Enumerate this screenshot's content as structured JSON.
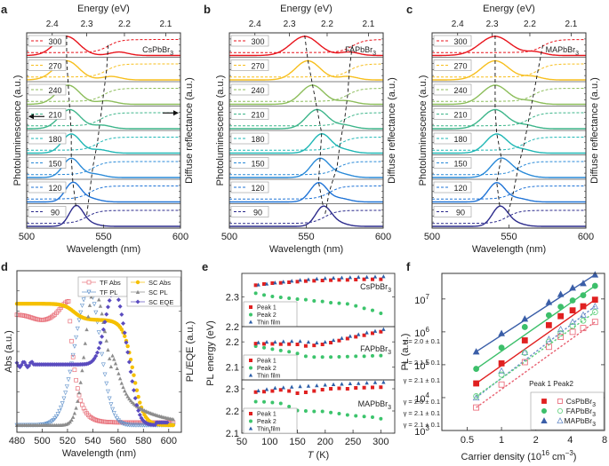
{
  "chart_data": [
    {
      "id": "a",
      "panel_label": "a",
      "type": "line",
      "title": "",
      "material": "CsPbBr3",
      "material_label": "CsPbBr",
      "material_sub": "3",
      "xlabel": "Wavelength (nm)",
      "x_ticks": [
        "500",
        "550",
        "600"
      ],
      "xlim": [
        500,
        600
      ],
      "top_axis_label": "Energy (eV)",
      "top_ticks": [
        "2.4",
        "2.3",
        "2.2",
        "2.1"
      ],
      "ylabel_left": "Photoluminescence (a.u.)",
      "ylabel_right": "Diffuse reflectance (a.u.)",
      "temperatures": [
        "300",
        "270",
        "240",
        "210",
        "180",
        "150",
        "120",
        "90"
      ],
      "pl_peak_nm": [
        526,
        526,
        527,
        528,
        529,
        529,
        530,
        532
      ],
      "pl_width_nm": [
        8,
        8,
        7.5,
        7,
        6,
        5.5,
        5,
        4.5
      ],
      "pl_shoulder_nm": [
        560,
        555,
        552,
        549,
        547,
        544,
        541,
        539
      ],
      "refl_edge_nm": [
        553,
        552,
        550,
        548,
        546,
        543,
        541,
        539
      ],
      "arrows": true
    },
    {
      "id": "b",
      "panel_label": "b",
      "type": "line",
      "material": "FAPbBr3",
      "material_label": "FAPbBr",
      "material_sub": "3",
      "xlabel": "Wavelength (nm)",
      "x_ticks": [
        "500",
        "550",
        "600"
      ],
      "xlim": [
        500,
        600
      ],
      "top_axis_label": "Energy (eV)",
      "top_ticks": [
        "2.4",
        "2.3",
        "2.2",
        "2.1"
      ],
      "ylabel_left": "Photoluminescence (a.u.)",
      "ylabel_right": "Diffuse reflectance (a.u.)",
      "temperatures": [
        "300",
        "270",
        "240",
        "210",
        "180",
        "150",
        "120",
        "90"
      ],
      "pl_peak_nm": [
        549,
        551,
        554,
        557,
        560,
        559,
        558,
        561
      ],
      "pl_width_nm": [
        9,
        8,
        7.5,
        7,
        6,
        6,
        5.5,
        5
      ],
      "pl_shoulder_nm": [
        578,
        577,
        576,
        575,
        574,
        573,
        572,
        570
      ],
      "refl_edge_nm": [
        580,
        578,
        577,
        575,
        572,
        570,
        565,
        562
      ]
    },
    {
      "id": "c",
      "panel_label": "c",
      "type": "line",
      "material": "MAPbBr3",
      "material_label": "MAPbBr",
      "material_sub": "3",
      "xlabel": "Wavelength (nm)",
      "x_ticks": [
        "500",
        "550",
        "600"
      ],
      "xlim": [
        500,
        600
      ],
      "top_axis_label": "Energy (eV)",
      "top_ticks": [
        "2.4",
        "2.3",
        "2.2",
        "2.1"
      ],
      "ylabel_left": "Photoluminescence (a.u.)",
      "ylabel_right": "Diffuse reflectance (a.u.)",
      "temperatures": [
        "300",
        "270",
        "240",
        "210",
        "180",
        "150",
        "120",
        "90"
      ],
      "pl_peak_nm": [
        541,
        541,
        541,
        541,
        542,
        545,
        542,
        544
      ],
      "pl_width_nm": [
        10,
        9,
        8.5,
        8,
        7,
        6.5,
        5.5,
        5
      ],
      "pl_shoulder_nm": [
        567,
        565,
        563,
        561,
        559,
        558,
        556,
        553
      ],
      "refl_edge_nm": [
        572,
        569,
        566,
        563,
        560,
        556,
        553,
        549
      ]
    },
    {
      "id": "d",
      "panel_label": "d",
      "type": "scatter",
      "xlabel": "Wavelength (nm)",
      "ylabel_left": "Abs (a.u.)",
      "ylabel_right": "PL/EQE (a.u.)",
      "xlim": [
        480,
        610
      ],
      "x_ticks": [
        "480",
        "500",
        "520",
        "540",
        "560",
        "580",
        "600"
      ],
      "legend": [
        "TF Abs",
        "TF PL",
        "SC Abs",
        "SC PL",
        "SC EQE"
      ],
      "series": [
        {
          "name": "TF Abs",
          "color": "#e8707a",
          "marker": "square-open",
          "peak_nm": 521,
          "peak": 0.92,
          "plateau": 0.82
        },
        {
          "name": "TF PL",
          "color": "#5b8ec9",
          "marker": "triangle-down-open",
          "peak_nm": 537,
          "width_nm": 11
        },
        {
          "name": "SC Abs",
          "color": "#f5c000",
          "marker": "circle",
          "plateau": 0.88,
          "edge_nm": 572
        },
        {
          "name": "SC PL",
          "color": "#8c8c8c",
          "marker": "triangle",
          "peak_nm": 541,
          "width_nm": 10
        },
        {
          "name": "SC EQE",
          "color": "#5a4bbf",
          "marker": "diamond",
          "peak_nm": 558,
          "baseline": 0.45
        }
      ]
    },
    {
      "id": "e",
      "panel_label": "e",
      "type": "scatter",
      "xlabel": "T (K)",
      "xlabel_italic": "T",
      "xlabel_unit": " (K)",
      "ylabel": "PL energy (eV)",
      "xlim": [
        50,
        325
      ],
      "x_ticks": [
        "50",
        "100",
        "150",
        "200",
        "250",
        "300"
      ],
      "legend": [
        "Peak 1",
        "Peak 2",
        "Thin film"
      ],
      "subplots": [
        {
          "material": "CsPbBr3",
          "material_label": "CsPbBr",
          "material_sub": "3",
          "ylim": [
            2.2,
            2.38
          ],
          "y_ticks": [
            "2.3",
            "2.2"
          ],
          "T": [
            75,
            90,
            105,
            120,
            135,
            150,
            165,
            180,
            195,
            210,
            225,
            240,
            255,
            270,
            285,
            300
          ],
          "peak1": [
            2.34,
            2.344,
            2.347,
            2.348,
            2.35,
            2.352,
            2.354,
            2.355,
            2.356,
            2.357,
            2.358,
            2.358,
            2.359,
            2.36,
            2.36,
            2.36
          ],
          "peak2": [
            2.313,
            2.307,
            2.302,
            2.299,
            2.296,
            2.293,
            2.291,
            2.287,
            2.285,
            2.281,
            2.279,
            2.277,
            2.27,
            2.262,
            2.255,
            2.245
          ],
          "thin_film": [
            2.342,
            2.345,
            2.349,
            2.352,
            2.355,
            2.358,
            2.36,
            2.362,
            2.364,
            2.365,
            2.366,
            2.367,
            2.368,
            2.368,
            2.369,
            2.37
          ]
        },
        {
          "material": "FAPbBr3",
          "material_label": "FAPbBr",
          "material_sub": "3",
          "ylim": [
            2.05,
            2.26
          ],
          "y_ticks": [
            "2.2",
            "2.1"
          ],
          "T": [
            75,
            90,
            105,
            120,
            135,
            150,
            165,
            180,
            195,
            210,
            225,
            240,
            255,
            270,
            285,
            300
          ],
          "peak1": [
            2.193,
            2.192,
            2.192,
            2.191,
            2.191,
            2.19,
            2.184,
            2.186,
            2.19,
            2.197,
            2.205,
            2.213,
            2.22,
            2.226,
            2.234,
            2.24
          ],
          "peak2": [
            2.183,
            2.177,
            2.171,
            2.166,
            2.161,
            2.154,
            2.143,
            2.14,
            2.14,
            2.14,
            2.141,
            2.142,
            2.143,
            2.143,
            2.145,
            2.146
          ],
          "thin_film": [
            2.198,
            2.2,
            2.2,
            2.202,
            2.203,
            2.203,
            2.2,
            2.197,
            2.2,
            2.207,
            2.215,
            2.223,
            2.23,
            2.237,
            2.243,
            2.25
          ]
        },
        {
          "material": "MAPbBr3",
          "material_label": "MAPbBr",
          "material_sub": "3",
          "ylim": [
            2.1,
            2.34
          ],
          "y_ticks": [
            "2.3",
            "2.2",
            "2.1"
          ],
          "T": [
            75,
            90,
            105,
            120,
            135,
            150,
            165,
            180,
            195,
            210,
            225,
            240,
            255,
            270,
            285,
            300
          ],
          "peak1": [
            2.285,
            2.287,
            2.29,
            2.295,
            2.29,
            2.28,
            2.284,
            2.29,
            2.296,
            2.3,
            2.302,
            2.3,
            2.304,
            2.305,
            2.306,
            2.307
          ],
          "peak2": [
            2.242,
            2.241,
            2.238,
            2.234,
            2.22,
            2.202,
            2.2,
            2.198,
            2.198,
            2.193,
            2.188,
            2.182,
            2.178,
            2.175,
            2.172,
            2.165
          ],
          "thin_film": [
            2.292,
            2.298,
            2.304,
            2.306,
            2.309,
            2.311,
            2.313,
            2.315,
            2.318,
            2.32,
            2.322,
            2.324,
            2.325,
            2.327,
            2.329,
            2.33
          ]
        }
      ]
    },
    {
      "id": "f",
      "panel_label": "f",
      "type": "scatter",
      "xscale": "log",
      "yscale": "log",
      "xlabel": "Carrier density (10",
      "xlabel_sup1": "16",
      "xlabel_mid": " cm",
      "xlabel_sup2": "−3",
      "xlabel_end": ")",
      "ylabel": "PL (a.u.)",
      "xlim": [
        0.3,
        8
      ],
      "ylim": [
        1000,
        60000000
      ],
      "x_ticks": [
        "0.5",
        "1",
        "2",
        "4",
        "8"
      ],
      "y_ticks": [
        "10^3",
        "10^4",
        "10^5",
        "10^6",
        "10^7"
      ],
      "legend_title": "Peak 1 Peak2",
      "legend": [
        "CsPbBr3",
        "FAPbBr3",
        "MAPbBr3"
      ],
      "x": [
        0.6,
        1.0,
        1.6,
        2.6,
        3.3,
        4.2,
        5.2,
        6.6
      ],
      "series": [
        {
          "name": "MAPbBr3 Peak 1",
          "color": "#3a5ea8",
          "filled": true,
          "marker": "triangle",
          "gamma": "γ = 2.0 ± 0.1",
          "y": [
            250000,
            900000,
            2500000,
            8000000,
            14000000,
            22000000,
            30000000,
            55000000
          ]
        },
        {
          "name": "FAPbBr3 Peak 1",
          "color": "#3cbf6a",
          "filled": true,
          "marker": "circle",
          "gamma": "γ = 2.1 ± 0.1",
          "y": [
            75000,
            330000,
            1400000,
            3200000,
            5800000,
            9000000,
            13000000,
            25000000
          ]
        },
        {
          "name": "CsPbBr3 Peak 1",
          "color": "#e02020",
          "filled": true,
          "marker": "square",
          "gamma": "γ = 2.1 ± 0.1",
          "y": [
            27000,
            110000,
            550000,
            1600000,
            3000000,
            4500000,
            6000000,
            9500000
          ]
        },
        {
          "name": "MAPbBr3 Peak 2",
          "color": "#6b8ec9",
          "filled": false,
          "marker": "triangle",
          "gamma": "γ = 2.0 ± 0.1",
          "y": [
            10000,
            65000,
            240000,
            600000,
            1200000,
            2000000,
            3300000,
            6000000
          ]
        },
        {
          "name": "FAPbBr3 Peak 2",
          "color": "#5ccf7a",
          "filled": false,
          "marker": "circle",
          "gamma": "γ = 2.1 ± 0.1",
          "y": [
            11000,
            50000,
            230000,
            500000,
            900000,
            1500000,
            2200000,
            4000000
          ]
        },
        {
          "name": "CsPbBr3 Peak 2",
          "color": "#e86070",
          "filled": false,
          "marker": "square",
          "gamma": "γ = 2.1 ± 0.1",
          "y": [
            5000,
            25000,
            120000,
            350000,
            700000,
            1000000,
            1300000,
            2000000
          ]
        }
      ]
    }
  ],
  "temp_colors": [
    "#e8141c",
    "#f7bf1e",
    "#8cbd5a",
    "#3db58a",
    "#1fb7b5",
    "#2a8ad8",
    "#1f73d6",
    "#2c2b8c"
  ]
}
